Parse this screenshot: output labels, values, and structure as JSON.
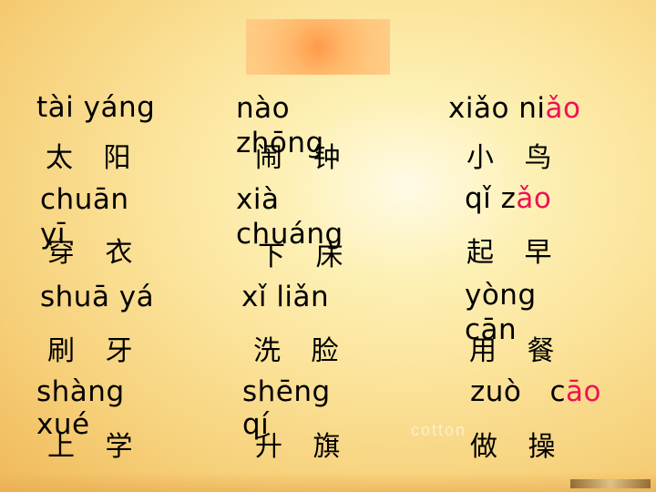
{
  "cards": [
    {
      "pinyin": "tài yáng",
      "hanzi": "太 阳"
    },
    {
      "pinyin": "nào zhōng",
      "hanzi": "闹 钟"
    },
    {
      "pinyin_main": "xiǎo  ni",
      "pinyin_accent": "ǎo",
      "hanzi_main": "小 ",
      "hanzi_accent": "鸟"
    },
    {
      "pinyin": "chuān yī",
      "hanzi": "穿 衣"
    },
    {
      "pinyin": "xià chuáng",
      "hanzi": "下 床"
    },
    {
      "pinyin_main": "qǐ   z",
      "pinyin_accent": "ǎo",
      "hanzi": "起  早"
    },
    {
      "pinyin": "shuā yá",
      "hanzi": "刷 牙"
    },
    {
      "pinyin": "xǐ  liǎn",
      "hanzi": "洗 脸"
    },
    {
      "pinyin": "yòng cān",
      "hanzi": "用 餐"
    },
    {
      "pinyin": "shàng xué",
      "hanzi": "上 学"
    },
    {
      "pinyin": "shēng qí",
      "hanzi": "升 旗"
    },
    {
      "pinyin_main": "zuò   c",
      "pinyin_accent": "āo",
      "hanzi": "做  操"
    }
  ],
  "watermark": "cotton",
  "colors": {
    "accent": "#ee1155",
    "title_box": "#ff9a4a"
  }
}
